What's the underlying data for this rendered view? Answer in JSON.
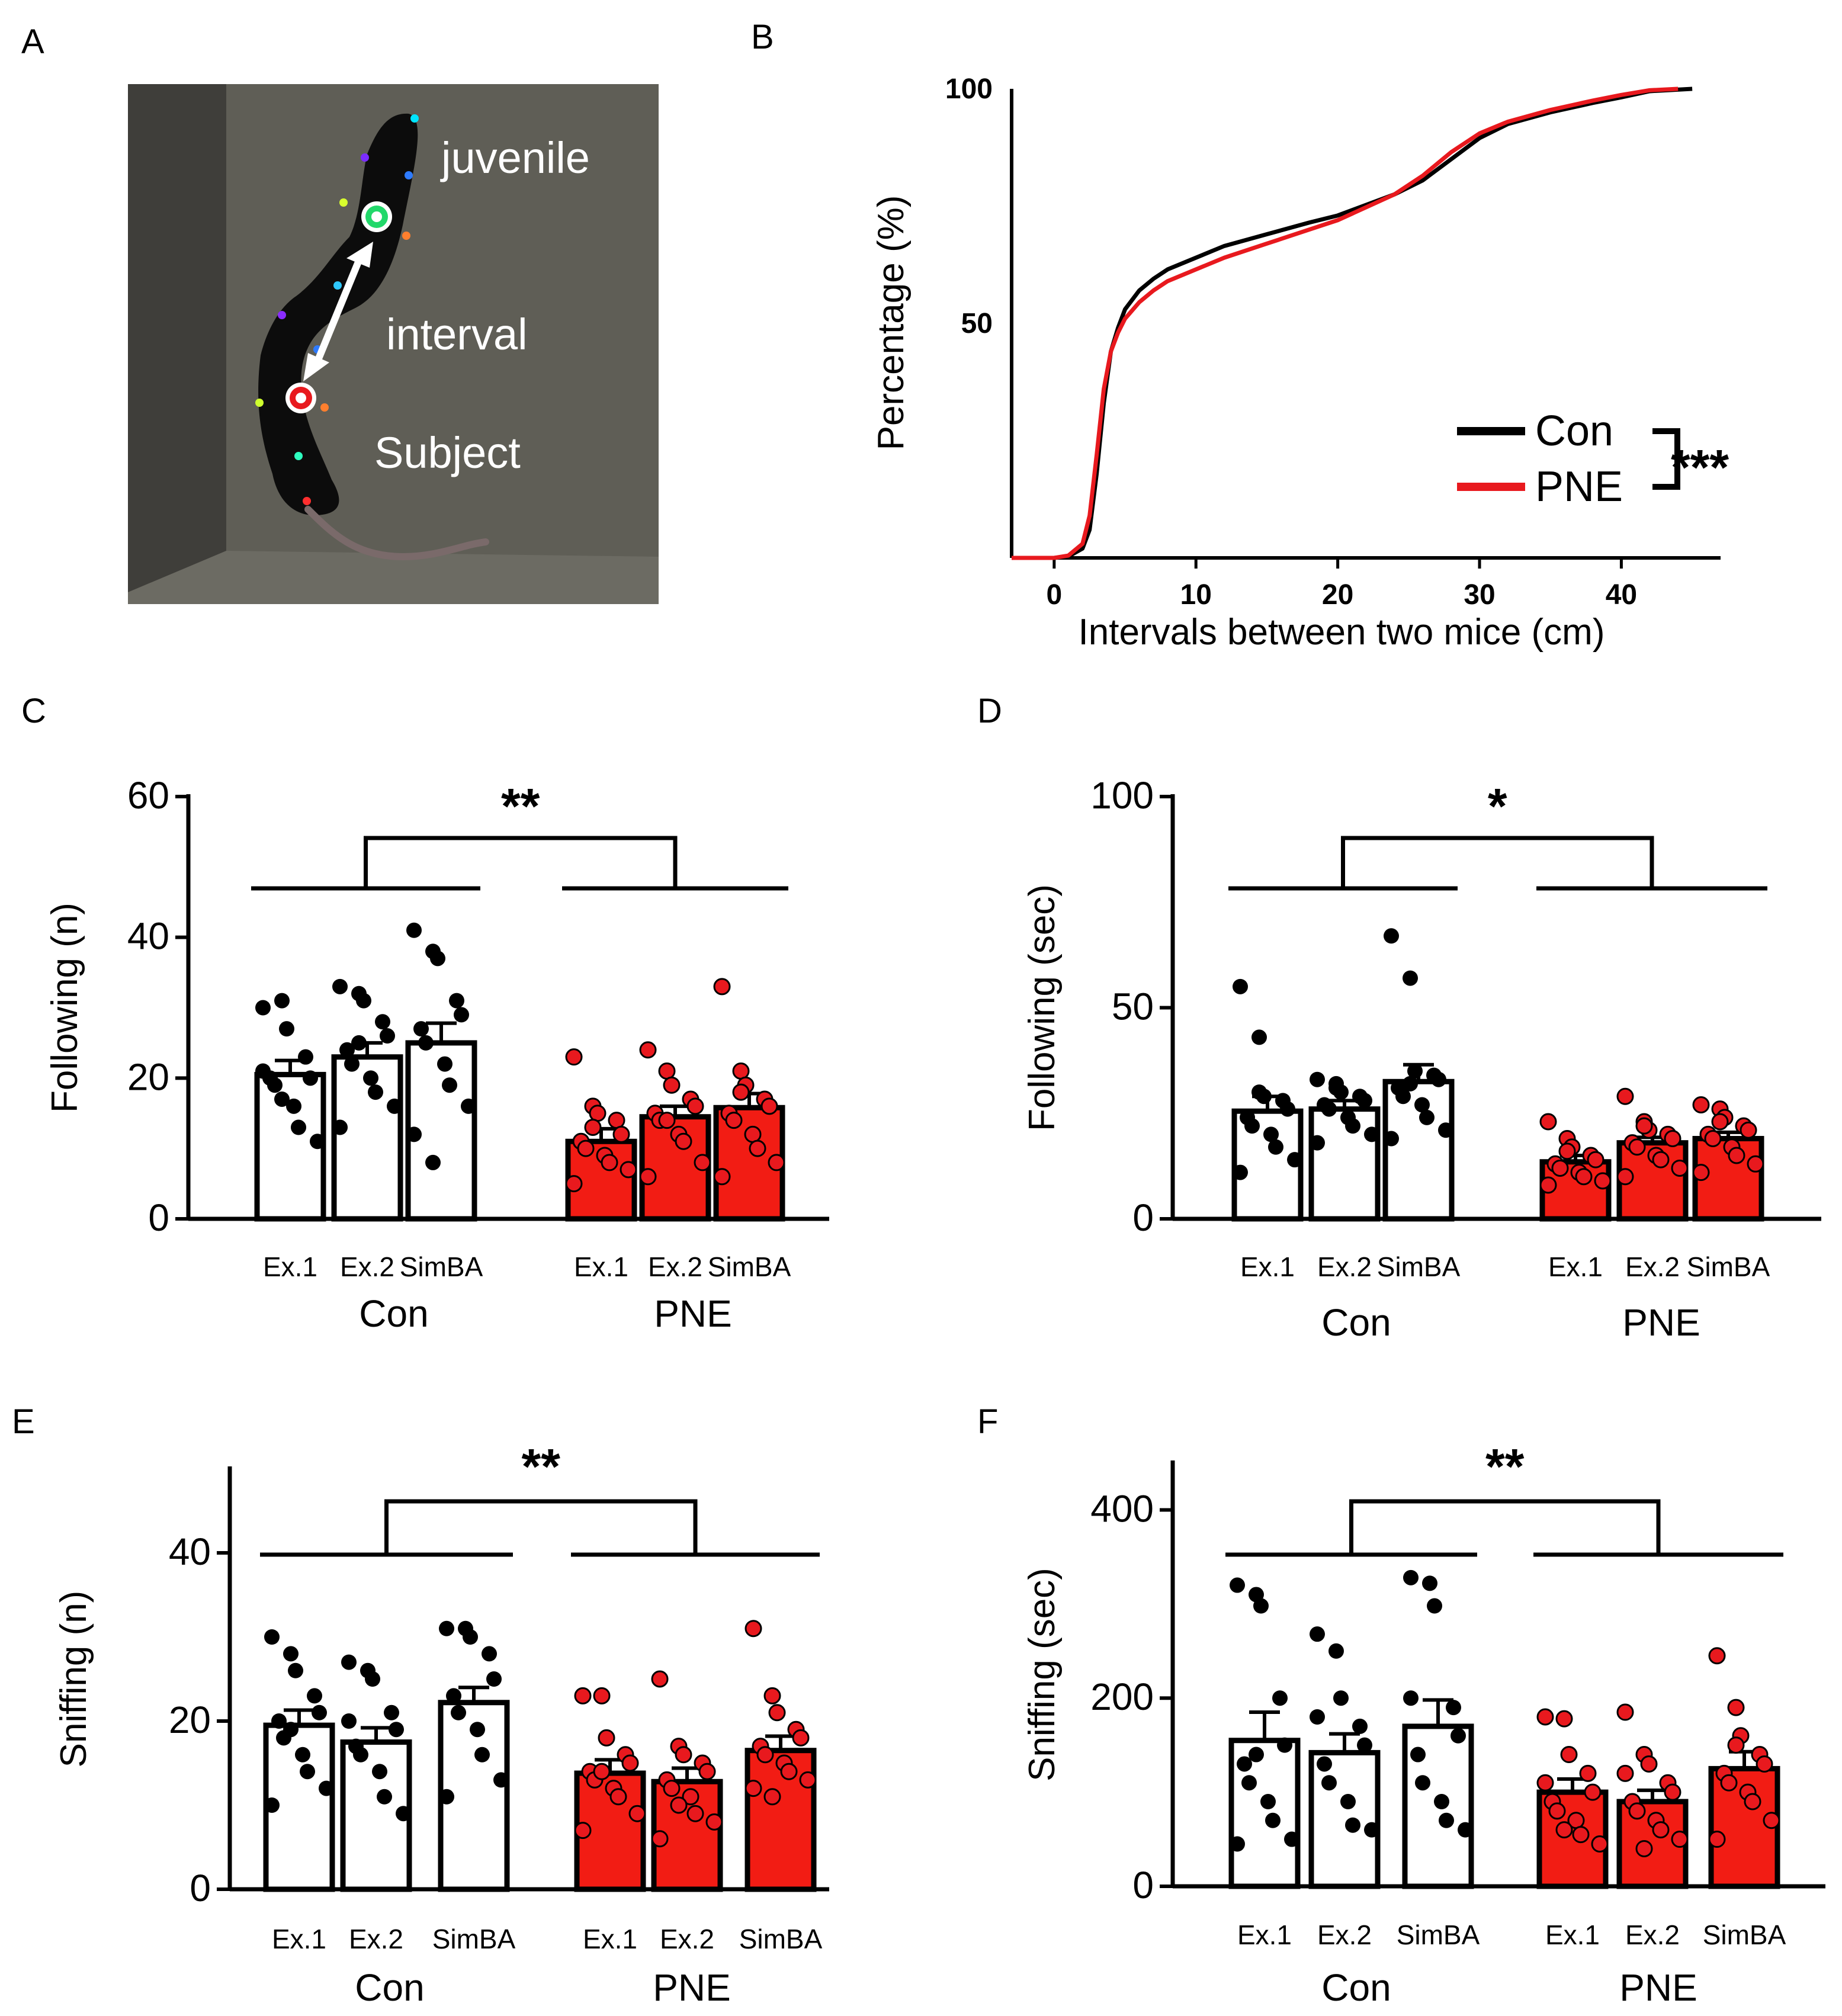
{
  "panels": {
    "A": {
      "letter": "A",
      "labels": {
        "juvenile": "juvenile",
        "interval": "interval",
        "subject": "Subject"
      }
    },
    "B": {
      "letter": "B"
    },
    "C": {
      "letter": "C"
    },
    "D": {
      "letter": "D"
    },
    "E": {
      "letter": "E"
    },
    "F": {
      "letter": "F"
    }
  },
  "colors": {
    "con": "#000000",
    "pne": "#e8191e",
    "pne_fill": "#f21c14",
    "bar_con_fill": "#ffffff"
  },
  "chart_data": [
    {
      "id": "B",
      "type": "line",
      "title": "",
      "xlabel": "Intervals between two mice (cm)",
      "ylabel": "Percentage (%)",
      "xlim": [
        -3,
        47
      ],
      "ylim": [
        0,
        100
      ],
      "xticks": [
        0,
        10,
        20,
        30,
        40
      ],
      "yticks": [
        50,
        100
      ],
      "legend": [
        "Con",
        "PNE"
      ],
      "significance": "***",
      "series": [
        {
          "name": "Con",
          "x": [
            0,
            1,
            2,
            2.5,
            3,
            3.5,
            4,
            4.5,
            5,
            6,
            7,
            8,
            10,
            12,
            15,
            18,
            20,
            24,
            26,
            28,
            30,
            32,
            35,
            38,
            40,
            42,
            45
          ],
          "y": [
            0,
            0.3,
            2,
            6,
            18,
            33,
            44,
            49,
            53,
            57,
            59.5,
            61.5,
            64,
            66.5,
            69,
            71.5,
            73,
            77.5,
            80.5,
            85,
            89.5,
            92.5,
            95,
            97,
            98.2,
            99.5,
            100
          ]
        },
        {
          "name": "PNE",
          "x": [
            0,
            1,
            2,
            2.5,
            3,
            3.5,
            4,
            4.5,
            5,
            6,
            7,
            8,
            10,
            12,
            15,
            18,
            20,
            24,
            26,
            28,
            30,
            32,
            35,
            38,
            40,
            42,
            44
          ],
          "y": [
            0,
            0.5,
            3,
            9,
            22,
            36,
            44,
            48,
            51,
            54.5,
            57,
            59,
            61.5,
            64,
            67,
            70,
            72,
            77.5,
            81.5,
            86.5,
            90.5,
            93,
            95.5,
            97.5,
            98.7,
            99.7,
            100
          ]
        }
      ]
    },
    {
      "id": "C",
      "type": "bar",
      "ylabel": "Following (n)",
      "ylim": [
        0,
        60
      ],
      "yticks": [
        0,
        20,
        40,
        60
      ],
      "categories": [
        "Ex.1",
        "Ex.2",
        "SimBA",
        "Ex.1",
        "Ex.2",
        "SimBA"
      ],
      "groups": [
        "Con",
        "PNE"
      ],
      "significance": "**",
      "series": [
        {
          "name": "Con",
          "means": [
            20.5,
            23,
            25
          ],
          "sem": [
            2,
            2,
            2.8
          ],
          "points": [
            [
              30,
              31,
              27,
              23,
              20,
              20,
              19,
              16,
              13,
              11,
              21,
              17
            ],
            [
              33,
              32,
              31,
              28,
              26,
              24,
              22,
              20,
              18,
              16,
              13,
              25
            ],
            [
              41,
              38,
              37,
              31,
              29,
              27,
              25,
              22,
              19,
              16,
              12,
              8
            ]
          ]
        },
        {
          "name": "PNE",
          "means": [
            11,
            14.5,
            15.8
          ],
          "sem": [
            1.8,
            1.5,
            2
          ],
          "points": [
            [
              23,
              16,
              15,
              14,
              12,
              11,
              10,
              9,
              8,
              7,
              5,
              13
            ],
            [
              24,
              21,
              19,
              17,
              16,
              15,
              14,
              12,
              11,
              8,
              6,
              14
            ],
            [
              33,
              21,
              19,
              17,
              16,
              15,
              14,
              12,
              10,
              8,
              6,
              18
            ]
          ]
        }
      ]
    },
    {
      "id": "D",
      "type": "bar",
      "ylabel": "Following (sec)",
      "ylim": [
        0,
        100
      ],
      "yticks": [
        0,
        50,
        100
      ],
      "categories": [
        "Ex.1",
        "Ex.2",
        "SimBA",
        "Ex.1",
        "Ex.2",
        "SimBA"
      ],
      "groups": [
        "Con",
        "PNE"
      ],
      "significance": "*",
      "series": [
        {
          "name": "Con",
          "means": [
            25.5,
            26,
            32.5
          ],
          "sem": [
            3.5,
            2,
            4
          ],
          "points": [
            [
              55,
              43,
              29,
              28,
              26,
              24,
              22,
              20,
              17,
              14,
              11,
              30
            ],
            [
              33,
              32,
              30,
              29,
              28,
              27,
              26,
              24,
              22,
              20,
              18,
              31
            ],
            [
              67,
              57,
              35,
              34,
              33,
              31,
              29,
              27,
              24,
              21,
              19,
              32
            ]
          ]
        },
        {
          "name": "PNE",
          "means": [
            13.5,
            18,
            19
          ],
          "sem": [
            1.5,
            1.3,
            1.5
          ],
          "points": [
            [
              23,
              19,
              17,
              15,
              14,
              13,
              12,
              11,
              10,
              9,
              8,
              16
            ],
            [
              29,
              23,
              21,
              20,
              19,
              18,
              17,
              15,
              14,
              12,
              10,
              22
            ],
            [
              27,
              26,
              24,
              22,
              21,
              20,
              19,
              17,
              15,
              13,
              11,
              23
            ]
          ]
        }
      ]
    },
    {
      "id": "E",
      "type": "bar",
      "ylabel": "Sniffing (n)",
      "ylim": [
        0,
        50
      ],
      "yticks": [
        0,
        20,
        40
      ],
      "categories": [
        "Ex.1",
        "Ex.2",
        "SimBA",
        "Ex.1",
        "Ex.2",
        "SimBA"
      ],
      "groups": [
        "Con",
        "PNE"
      ],
      "significance": "**",
      "series": [
        {
          "name": "Con",
          "means": [
            19.5,
            17.5,
            22.2
          ],
          "sem": [
            1.8,
            1.7,
            1.8
          ],
          "points": [
            [
              30,
              28,
              26,
              23,
              21,
              20,
              18,
              16,
              14,
              12,
              10,
              19
            ],
            [
              27,
              26,
              25,
              21,
              19,
              17,
              16,
              14,
              11,
              9,
              20
            ],
            [
              31,
              31,
              30,
              28,
              25,
              23,
              21,
              19,
              16,
              13,
              11
            ]
          ]
        },
        {
          "name": "PNE",
          "means": [
            13.8,
            12.8,
            16.5
          ],
          "sem": [
            1.6,
            1.6,
            1.7
          ],
          "points": [
            [
              23,
              23,
              18,
              16,
              15,
              14,
              13,
              12,
              11,
              9,
              7,
              14
            ],
            [
              25,
              17,
              16,
              15,
              14,
              13,
              12,
              11,
              9,
              8,
              6,
              10
            ],
            [
              31,
              23,
              21,
              19,
              18,
              17,
              16,
              15,
              14,
              13,
              12,
              11
            ]
          ]
        }
      ]
    },
    {
      "id": "F",
      "type": "bar",
      "ylabel": "Sniffing (sec)",
      "ylim": [
        0,
        450
      ],
      "yticks": [
        0,
        200,
        400
      ],
      "categories": [
        "Ex.1",
        "Ex.2",
        "SimBA",
        "Ex.1",
        "Ex.2",
        "SimBA"
      ],
      "groups": [
        "Con",
        "PNE"
      ],
      "significance": "**",
      "series": [
        {
          "name": "Con",
          "means": [
            155,
            142,
            170
          ],
          "sem": [
            30,
            20,
            28
          ],
          "points": [
            [
              320,
              310,
              298,
              200,
              150,
              130,
              110,
              90,
              70,
              50,
              45,
              140
            ],
            [
              268,
              250,
              200,
              170,
              150,
              130,
              110,
              90,
              65,
              60,
              180
            ],
            [
              328,
              322,
              298,
              190,
              160,
              140,
              110,
              90,
              70,
              60,
              200
            ]
          ]
        },
        {
          "name": "PNE",
          "means": [
            100,
            90,
            125
          ],
          "sem": [
            14,
            12,
            18
          ],
          "points": [
            [
              180,
              178,
              140,
              120,
              100,
              90,
              80,
              70,
              55,
              45,
              110,
              60
            ],
            [
              185,
              140,
              130,
              110,
              100,
              90,
              80,
              70,
              60,
              50,
              120,
              40
            ],
            [
              245,
              190,
              160,
              140,
              130,
              120,
              110,
              100,
              90,
              70,
              50,
              150
            ]
          ]
        }
      ]
    }
  ]
}
